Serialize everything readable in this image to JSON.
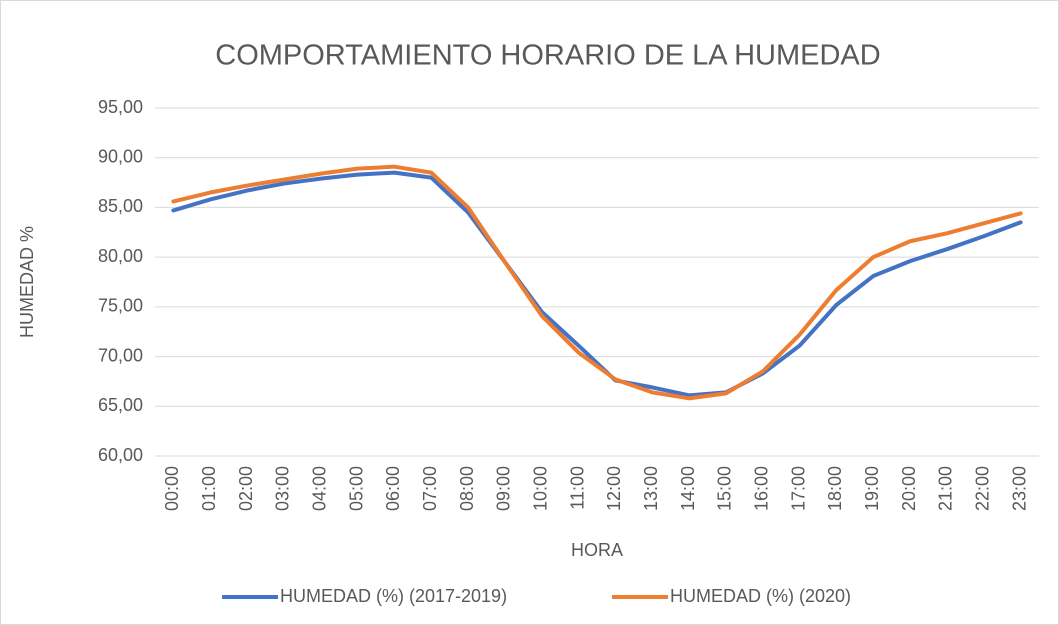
{
  "chart_data": {
    "type": "line",
    "title": "COMPORTAMIENTO HORARIO DE LA HUMEDAD",
    "x_label": "HORA",
    "y_label": "HUMEDAD %",
    "categories": [
      "00:00",
      "01:00",
      "02:00",
      "03:00",
      "04:00",
      "05:00",
      "06:00",
      "07:00",
      "08:00",
      "09:00",
      "10:00",
      "11:00",
      "12:00",
      "13:00",
      "14:00",
      "15:00",
      "16:00",
      "17:00",
      "18:00",
      "19:00",
      "20:00",
      "21:00",
      "22:00",
      "23:00"
    ],
    "series": [
      {
        "name": "HUMEDAD (%) (2017-2019)",
        "color": "#4472c4",
        "values": [
          84.7,
          85.8,
          86.7,
          87.4,
          87.9,
          88.3,
          88.5,
          88.0,
          84.5,
          79.5,
          74.5,
          71.1,
          67.6,
          66.9,
          66.1,
          66.4,
          68.3,
          71.1,
          75.2,
          78.1,
          79.6,
          80.8,
          82.1,
          83.5
        ]
      },
      {
        "name": "HUMEDAD (%) (2020)",
        "color": "#ed7d31",
        "values": [
          85.6,
          86.5,
          87.2,
          87.8,
          88.4,
          88.9,
          89.1,
          88.5,
          85.0,
          79.5,
          74.1,
          70.4,
          67.7,
          66.4,
          65.8,
          66.3,
          68.5,
          72.2,
          76.7,
          80.0,
          81.6,
          82.4,
          83.4,
          84.4
        ]
      }
    ],
    "ylim": [
      60,
      95
    ],
    "yticks": [
      {
        "value": 60,
        "label": "60,00"
      },
      {
        "value": 65,
        "label": "65,00"
      },
      {
        "value": 70,
        "label": "70,00"
      },
      {
        "value": 75,
        "label": "75,00"
      },
      {
        "value": 80,
        "label": "80,00"
      },
      {
        "value": 85,
        "label": "85,00"
      },
      {
        "value": 90,
        "label": "90,00"
      },
      {
        "value": 95,
        "label": "95,00"
      }
    ],
    "grid": true,
    "legend": "bottom"
  }
}
